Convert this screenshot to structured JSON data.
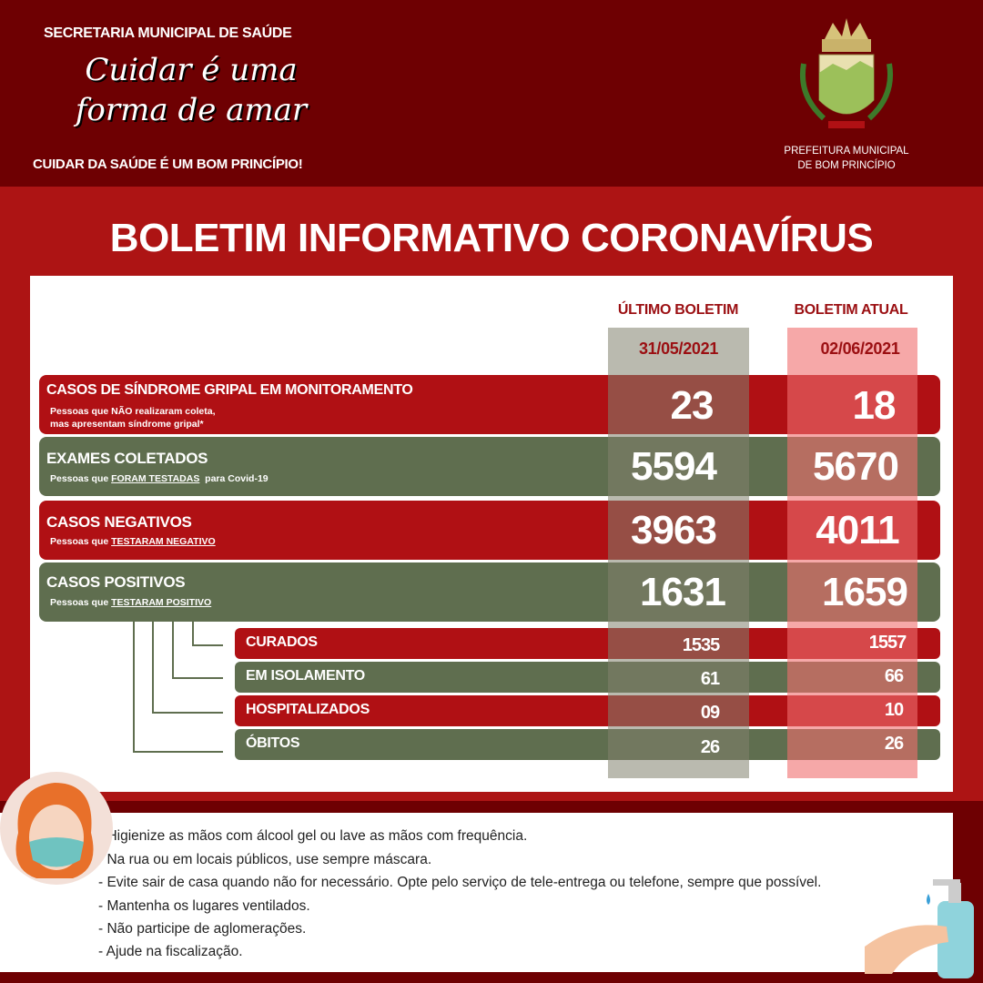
{
  "header": {
    "department": "SECRETARIA MUNICIPAL DE SAÚDE",
    "slogan_line1": "Cuidar é uma",
    "slogan_line2": "forma de amar",
    "tagline": "CUIDAR DA SAÚDE É UM BOM PRINCÍPIO!",
    "logo_text": "BOM PRINCÍPIO",
    "city_line1": "PREFEITURA MUNICIPAL",
    "city_line2": "DE BOM PRINCÍPIO"
  },
  "title": "BOLETIM INFORMATIVO CORONAVÍRUS",
  "columns": {
    "previous": {
      "label": "ÚLTIMO BOLETIM",
      "date": "31/05/2021"
    },
    "current": {
      "label": "BOLETIM ATUAL",
      "date": "02/06/2021"
    }
  },
  "rows": [
    {
      "title": "CASOS DE SÍNDROME GRIPAL EM MONITORAMENTO",
      "desc1": "Pessoas que NÃO realizaram coleta,",
      "desc2": "mas apresentam síndrome gripal*",
      "previous": "23",
      "current": "18"
    },
    {
      "title": "EXAMES COLETADOS",
      "desc_prefix": "Pessoas que ",
      "desc_u": "FORAM TESTADAS",
      "desc_suffix": "  para Covid-19",
      "previous": "5594",
      "current": "5670"
    },
    {
      "title": "CASOS NEGATIVOS",
      "desc_prefix": "Pessoas que ",
      "desc_u": "TESTARAM NEGATIVO",
      "previous": "3963",
      "current": "4011"
    },
    {
      "title": "CASOS POSITIVOS",
      "desc_prefix": "Pessoas que ",
      "desc_u": "TESTARAM POSITIVO",
      "previous": "1631",
      "current": "1659"
    }
  ],
  "subrows": [
    {
      "title": "CURADOS",
      "previous": "1535",
      "current": "1557"
    },
    {
      "title": "EM ISOLAMENTO",
      "previous": "61",
      "current": "66"
    },
    {
      "title": "HOSPITALIZADOS",
      "previous": "09",
      "current": "10"
    },
    {
      "title": "ÓBITOS",
      "previous": "26",
      "current": "26"
    }
  ],
  "tips": [
    "- Higienize as mãos com álcool gel ou lave as mãos com frequência.",
    "- Na rua ou em locais públicos, use sempre máscara.",
    "- Evite sair de casa quando não for necessário. Opte pelo serviço de tele-entrega ou telefone, sempre que possível.",
    "- Mantenha os lugares ventilados.",
    "- Não participe de aglomerações.",
    " - Ajude na fiscalização."
  ],
  "colors": {
    "dark_red": "#6e0002",
    "red": "#b01014",
    "green": "#5f6e4f",
    "gray_col": "#a9ad9d",
    "pink_col": "#f08a8a"
  }
}
